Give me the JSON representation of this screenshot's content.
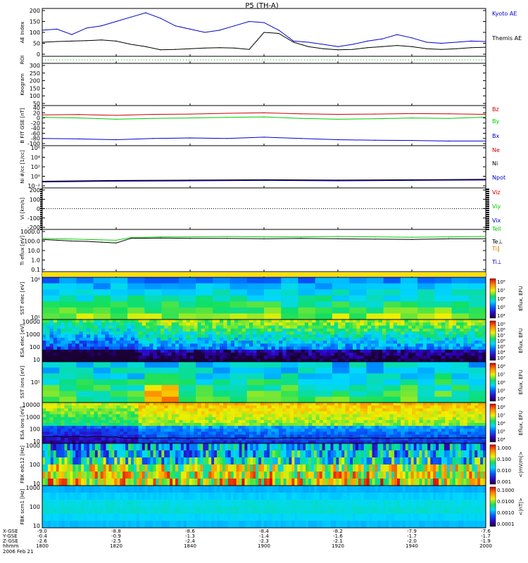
{
  "chart_data": {
    "type": "line",
    "title": "P5 (TH-A)",
    "time_axis": {
      "ticks": [
        "1800",
        "1820",
        "1840",
        "1900",
        "1920",
        "1940",
        "2000"
      ],
      "x_gse": [
        "-9.0",
        "-8.8",
        "-8.6",
        "-8.4",
        "-8.2",
        "-7.9",
        "-7.6"
      ],
      "y_gse": [
        "-0.4",
        "-0.9",
        "-1.3",
        "-1.4",
        "-1.6",
        "-1.7",
        "-1.7"
      ],
      "z_gse": [
        "-2.6",
        "-2.5",
        "-2.4",
        "-2.3",
        "-2.1",
        "-2.0",
        "-1.9"
      ],
      "row_labels": [
        "X-GSE",
        "Y-GSE",
        "Z-GSE",
        "hhmm"
      ],
      "date": "2006 Feb 21"
    },
    "panels": [
      {
        "id": "ae",
        "ylabel": "AE Index",
        "ylim": [
          0,
          200
        ],
        "ticks": [
          "200",
          "150",
          "100",
          "50",
          "0"
        ],
        "series": [
          {
            "name": "Kyoto AE",
            "color": "#0000cc",
            "x": [
              0,
              4,
              8,
              12,
              16,
              20,
              24,
              28,
              32,
              36,
              40,
              44,
              48,
              52,
              56,
              60,
              64,
              68,
              72,
              76,
              80,
              84,
              88,
              92,
              96,
              100,
              104,
              108,
              112,
              116,
              120
            ],
            "values": [
              110,
              115,
              90,
              120,
              130,
              150,
              170,
              190,
              165,
              130,
              115,
              100,
              110,
              130,
              150,
              145,
              110,
              60,
              55,
              45,
              35,
              45,
              60,
              70,
              90,
              75,
              55,
              50,
              55,
              60,
              58
            ]
          },
          {
            "name": "Themis AE",
            "color": "#000000",
            "x": [
              0,
              4,
              8,
              12,
              16,
              20,
              24,
              28,
              32,
              36,
              40,
              44,
              48,
              52,
              56,
              60,
              64,
              68,
              72,
              76,
              80,
              84,
              88,
              92,
              96,
              100,
              104,
              108,
              112,
              116,
              120
            ],
            "values": [
              55,
              58,
              60,
              62,
              65,
              60,
              45,
              35,
              20,
              22,
              25,
              28,
              30,
              28,
              22,
              100,
              95,
              55,
              35,
              25,
              20,
              22,
              30,
              35,
              40,
              35,
              25,
              22,
              25,
              30,
              32
            ]
          }
        ]
      },
      {
        "id": "roi",
        "ylabel": "ROI",
        "ylim": [
          0,
          1
        ],
        "ticks": []
      },
      {
        "id": "keogram",
        "ylabel": "Keogram",
        "ylim": [
          0,
          300
        ],
        "ticks": [
          "300",
          "250",
          "200",
          "150",
          "100",
          "50"
        ]
      },
      {
        "id": "bfit",
        "ylabel": "B FIT GSE [nT]",
        "ylim": [
          -100,
          40
        ],
        "ticks": [
          "40",
          "20",
          "0",
          "-20",
          "-40",
          "-60",
          "-80",
          "-100"
        ],
        "series": [
          {
            "name": "Bz",
            "color": "#cc0000",
            "x": [
              0,
              10,
              20,
              30,
              40,
              50,
              60,
              70,
              80,
              90,
              100,
              110,
              120
            ],
            "values": [
              12,
              13,
              10,
              14,
              15,
              18,
              20,
              16,
              14,
              15,
              17,
              16,
              14
            ]
          },
          {
            "name": "By",
            "color": "#00cc00",
            "x": [
              0,
              10,
              20,
              30,
              40,
              50,
              60,
              70,
              80,
              90,
              100,
              110,
              120
            ],
            "values": [
              2,
              0,
              -5,
              -2,
              0,
              2,
              4,
              -2,
              -5,
              -3,
              0,
              -2,
              3
            ]
          },
          {
            "name": "Bx",
            "color": "#0000cc",
            "x": [
              0,
              10,
              20,
              30,
              40,
              50,
              60,
              70,
              80,
              90,
              100,
              110,
              120
            ],
            "values": [
              -80,
              -82,
              -85,
              -80,
              -78,
              -80,
              -75,
              -80,
              -85,
              -87,
              -88,
              -90,
              -90
            ]
          }
        ]
      },
      {
        "id": "ni",
        "ylabel": "Ni #/cc [1/cc]",
        "ylim": [
          -2,
          8
        ],
        "log": true,
        "ticks": [
          "10⁶",
          "10⁴",
          "10²",
          "10⁰",
          "10⁻²"
        ],
        "series": [
          {
            "name": "Ne",
            "color": "#cc0000",
            "x": [
              0,
              20,
              40,
              60,
              80,
              100,
              120
            ],
            "values": [
              -0.9,
              -0.7,
              -0.6,
              -0.5,
              -0.6,
              -0.5,
              -0.4
            ]
          },
          {
            "name": "Ni",
            "color": "#000000",
            "x": [
              0,
              20,
              40,
              60,
              80,
              100,
              120
            ],
            "values": [
              -0.8,
              -0.6,
              -0.5,
              -0.4,
              -0.5,
              -0.4,
              -0.3
            ]
          },
          {
            "name": "Npot",
            "color": "#0000cc",
            "x": [
              0,
              20,
              40,
              60,
              80,
              100,
              120
            ],
            "values": [
              -1.0,
              -0.8,
              -0.7,
              -0.6,
              -0.7,
              -0.6,
              -0.5
            ]
          }
        ]
      },
      {
        "id": "vi",
        "ylabel": "Vi [km/s]",
        "ylim": [
          -250,
          250
        ],
        "ticks": [
          "200",
          "100",
          "0",
          "-100",
          "-200"
        ],
        "series": [
          {
            "name": "Viz",
            "color": "#cc0000",
            "x": [],
            "values": []
          },
          {
            "name": "Viy",
            "color": "#00cc00",
            "x": [],
            "values": []
          },
          {
            "name": "Vix",
            "color": "#0000cc",
            "x": [],
            "values": []
          }
        ]
      },
      {
        "id": "ti",
        "ylabel": "Ti eflux [eV]",
        "ylim": [
          -1,
          4
        ],
        "log": true,
        "ticks": [
          "1000.0",
          "100.0",
          "10.0",
          "1.0",
          "0.1"
        ],
        "series": [
          {
            "name": "Tell",
            "color": "#00cc00",
            "x": [
              0,
              4,
              8,
              12,
              16,
              20,
              24,
              28,
              32,
              40,
              50,
              60,
              70,
              80,
              90,
              100,
              110,
              120
            ],
            "values": [
              3.1,
              3.05,
              3.0,
              2.95,
              2.9,
              2.85,
              3.2,
              3.25,
              3.3,
              3.3,
              3.35,
              3.3,
              3.3,
              3.35,
              3.3,
              3.25,
              3.3,
              3.35
            ]
          },
          {
            "name": "Te⊥",
            "color": "#000000",
            "x": [
              0,
              4,
              8,
              12,
              16,
              20,
              24,
              28,
              32,
              40,
              50,
              60,
              70,
              80,
              90,
              100,
              110,
              120
            ],
            "values": [
              2.95,
              2.85,
              2.75,
              2.7,
              2.6,
              2.5,
              3.1,
              3.12,
              3.15,
              3.1,
              3.1,
              3.05,
              3.1,
              3.05,
              3.0,
              2.95,
              3.05,
              3.05
            ]
          },
          {
            "name": "Ti∥",
            "color": "#cc8800",
            "x": [],
            "values": []
          },
          {
            "name": "Ti⊥",
            "color": "#0000cc",
            "x": [],
            "values": []
          }
        ]
      },
      {
        "id": "bar",
        "ylabel": "",
        "ticks": []
      },
      {
        "id": "sst_e",
        "ylabel": "SST elec [eV]",
        "ticks": [
          "10⁶",
          "10⁵"
        ],
        "type": "heatmap",
        "colorbar": "Eflux, EFU",
        "cb_ticks": [
          "10⁸",
          "10⁷",
          "10⁶",
          "10⁵",
          "10⁴"
        ]
      },
      {
        "id": "esa_e",
        "ylabel": "ESA elec [eV]",
        "ticks": [
          "10000",
          "1000",
          "100",
          "10"
        ],
        "type": "heatmap",
        "colorbar": "Eflux, EFU",
        "cb_ticks": [
          "10⁹",
          "10⁸",
          "10⁷",
          "10⁶",
          "10⁵",
          "10⁴",
          "10³"
        ]
      },
      {
        "id": "sst_i",
        "ylabel": "SST ions [eV]",
        "ticks": [
          "10⁵"
        ],
        "type": "heatmap",
        "colorbar": "Eflux, EFU",
        "cb_ticks": [
          "10⁸",
          "10⁷",
          "10⁶",
          "10⁵",
          "10⁴"
        ]
      },
      {
        "id": "esa_i",
        "ylabel": "ESA ions [eV]",
        "ticks": [
          "10000",
          "1000",
          "100",
          "10"
        ],
        "type": "heatmap",
        "colorbar": "Eflux, EFU",
        "cb_ticks": [
          "10⁸",
          "10⁷",
          "10⁶",
          "10⁵",
          "10⁴"
        ]
      },
      {
        "id": "fbk_e",
        "ylabel": "FBK edc12 [Hz]",
        "ticks": [
          "1000",
          "100",
          "10"
        ],
        "type": "heatmap",
        "colorbar": "<|mV/m|>",
        "cb_ticks": [
          "1.000",
          "0.100",
          "0.010",
          "0.001"
        ]
      },
      {
        "id": "fbk_b",
        "ylabel": "FBK scm1 [Hz]",
        "ticks": [
          "1000",
          "100",
          "10"
        ],
        "type": "heatmap",
        "colorbar": "<|nT|>",
        "cb_ticks": [
          "0.1000",
          "0.0100",
          "0.0010",
          "0.0001"
        ]
      }
    ]
  }
}
